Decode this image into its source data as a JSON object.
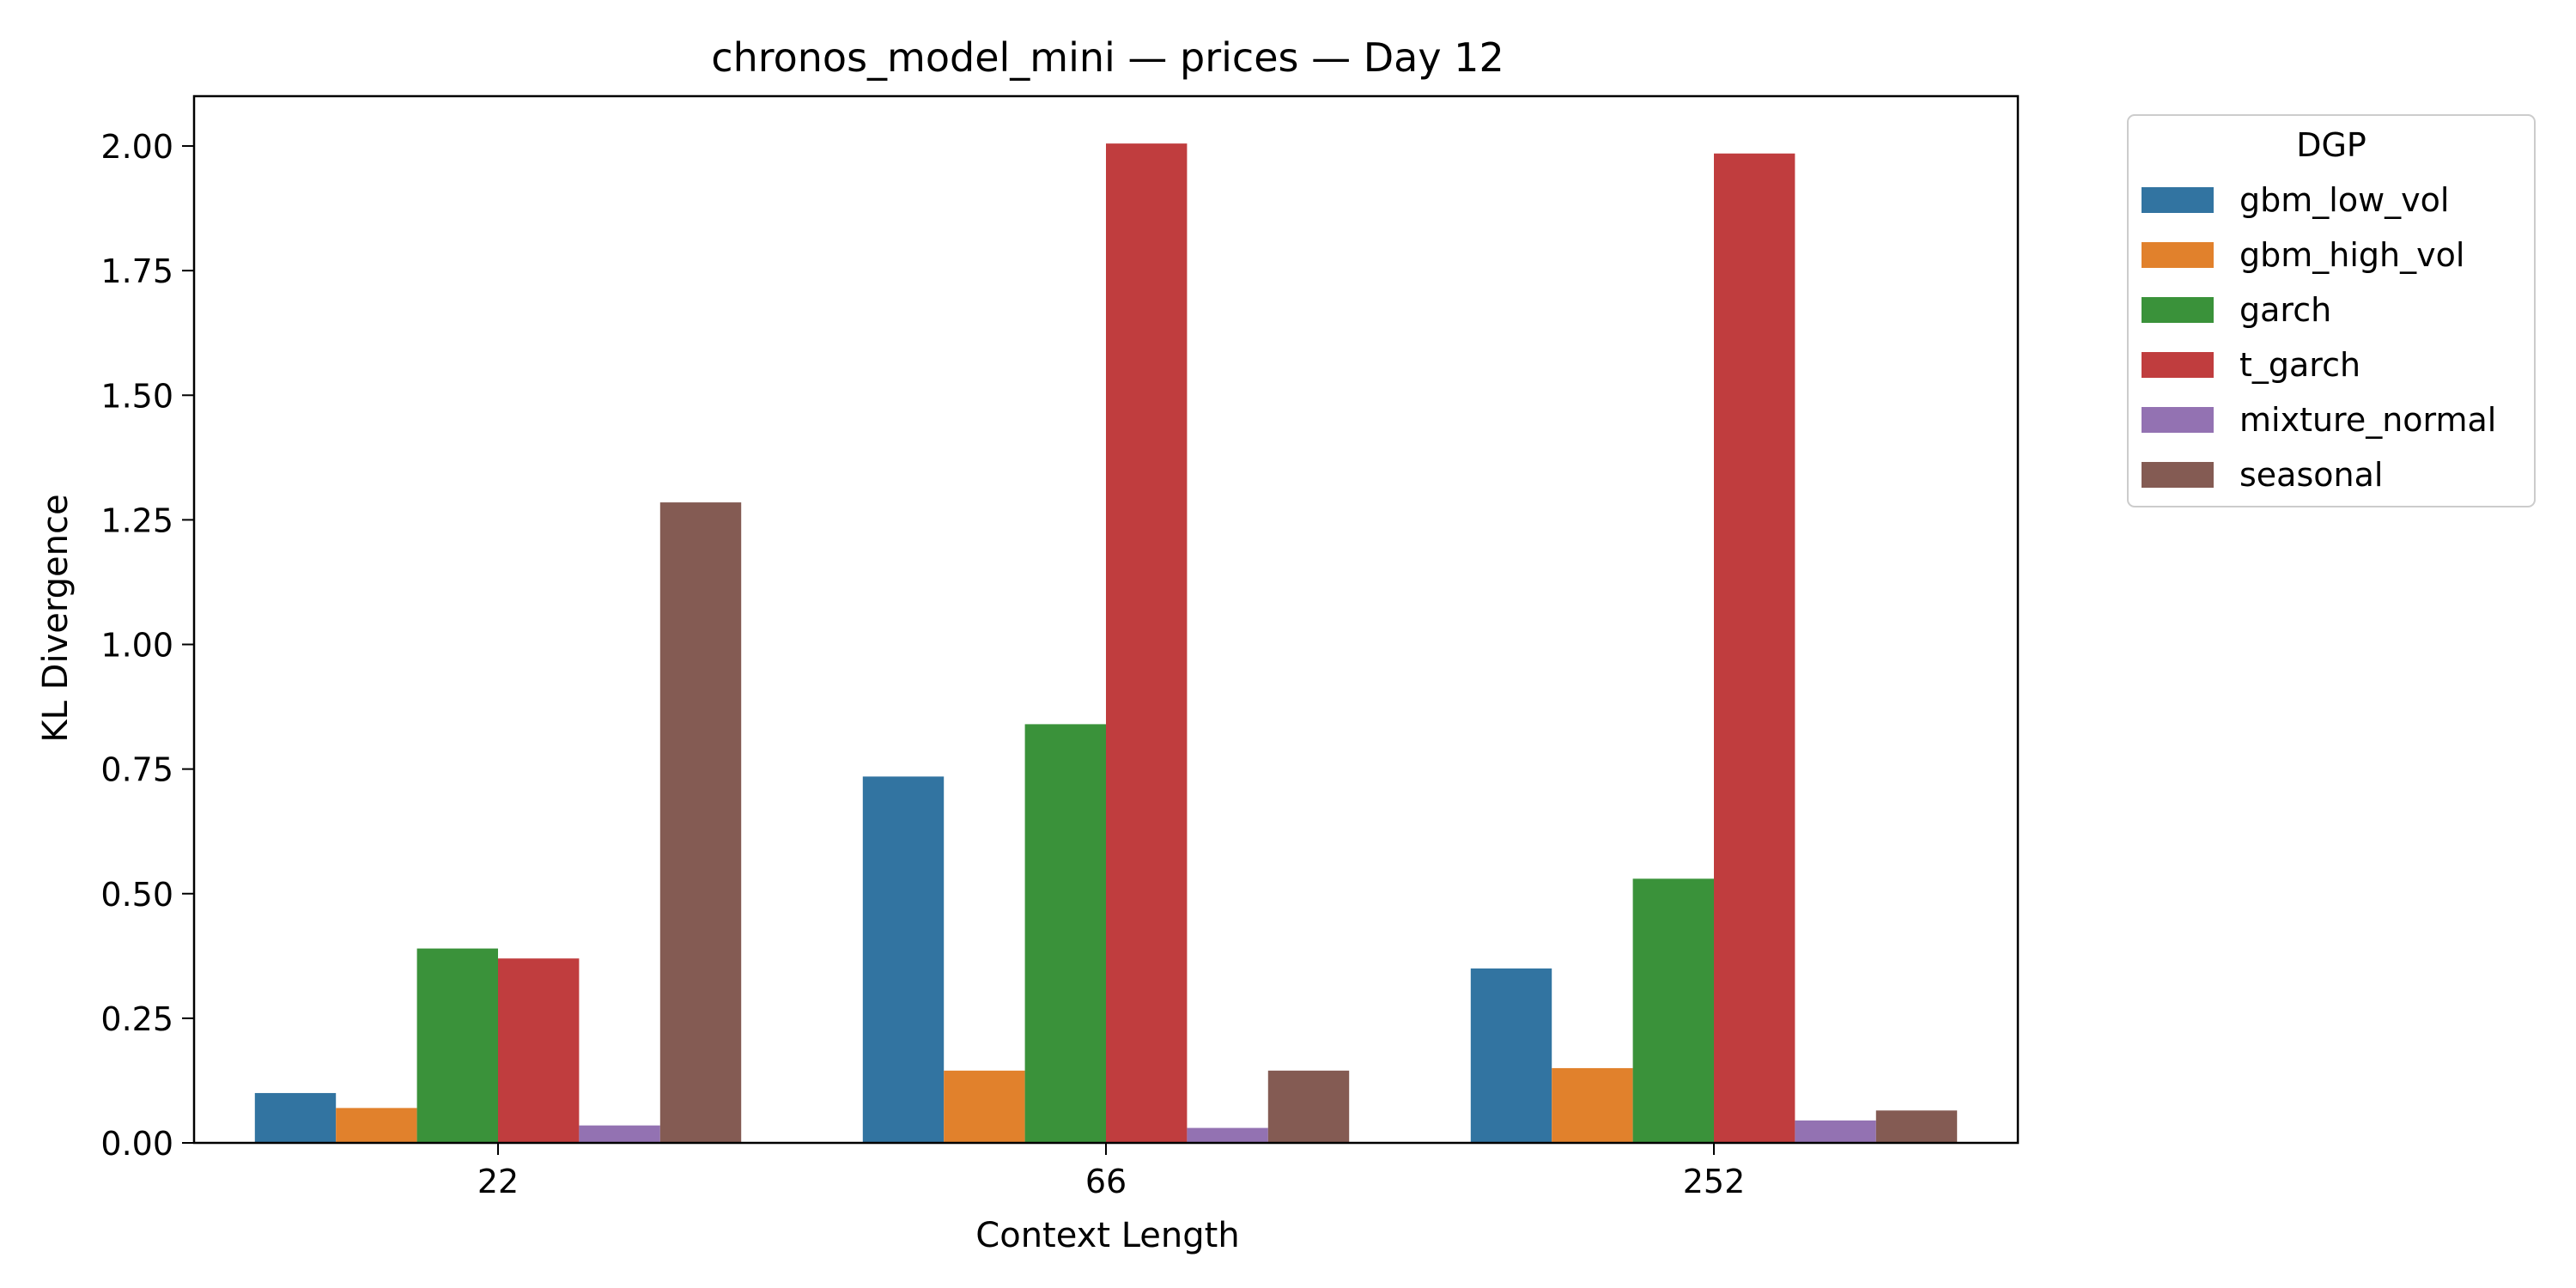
{
  "chart_data": {
    "type": "bar",
    "title": "chronos_model_mini — prices — Day 12",
    "xlabel": "Context Length",
    "ylabel": "KL Divergence",
    "ylim": [
      0,
      2.1
    ],
    "yticks": [
      "0.00",
      "0.25",
      "0.50",
      "0.75",
      "1.00",
      "1.25",
      "1.50",
      "1.75",
      "2.00"
    ],
    "categories": [
      "22",
      "66",
      "252"
    ],
    "legend": {
      "title": "DGP",
      "placement": "outside-top-right"
    },
    "series": [
      {
        "name": "gbm_low_vol",
        "color": "#3274a1",
        "values": [
          0.1,
          0.735,
          0.35
        ]
      },
      {
        "name": "gbm_high_vol",
        "color": "#e1812c",
        "values": [
          0.07,
          0.145,
          0.15
        ]
      },
      {
        "name": "garch",
        "color": "#3a923a",
        "values": [
          0.39,
          0.84,
          0.53
        ]
      },
      {
        "name": "t_garch",
        "color": "#c03d3e",
        "values": [
          0.37,
          2.005,
          1.985
        ]
      },
      {
        "name": "mixture_normal",
        "color": "#9372b2",
        "values": [
          0.035,
          0.03,
          0.045
        ]
      },
      {
        "name": "seasonal",
        "color": "#845b53",
        "values": [
          1.285,
          0.145,
          0.065
        ]
      }
    ]
  }
}
